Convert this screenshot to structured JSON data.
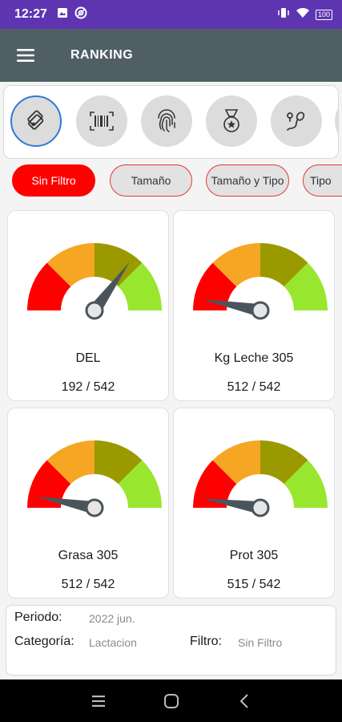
{
  "status_bar": {
    "time": "12:27",
    "battery": "100",
    "icons": [
      "image-icon",
      "at-sign-icon",
      "vibrate-icon",
      "wifi-icon",
      "battery-icon"
    ]
  },
  "app_bar": {
    "title": "RANKING",
    "menu_icon": "hamburger-menu-icon"
  },
  "category_icons": [
    {
      "name": "tags-icon",
      "selected": true
    },
    {
      "name": "barcode-icon",
      "selected": false
    },
    {
      "name": "fingerprint-icon",
      "selected": false
    },
    {
      "name": "medal-icon",
      "selected": false
    },
    {
      "name": "sperm-icon",
      "selected": false
    }
  ],
  "filters": [
    {
      "label": "Sin Filtro",
      "active": true
    },
    {
      "label": "Tamaño",
      "active": false
    },
    {
      "label": "Tamaño y Tipo",
      "active": false
    },
    {
      "label": "Tipo",
      "active": false
    }
  ],
  "gauges": [
    {
      "label": "DEL",
      "value": "192 / 542",
      "level": 0.7
    },
    {
      "label": "Kg Leche 305",
      "value": "512 / 542",
      "level": 0.06
    },
    {
      "label": "Grasa 305",
      "value": "512 / 542",
      "level": 0.06
    },
    {
      "label": "Prot 305",
      "value": "515 / 542",
      "level": 0.05
    }
  ],
  "gauge_colors": [
    "#ff0000",
    "#f5a623",
    "#9a9a00",
    "#99e62e"
  ],
  "info": {
    "periodo_label": "Periodo:",
    "periodo_value": "2022 jun.",
    "categoria_label": "Categoría:",
    "categoria_value": "Lactacion",
    "filtro_label": "Filtro:",
    "filtro_value": "Sin Filtro"
  },
  "nav_bar": {
    "icons": [
      "recents-icon",
      "home-icon",
      "back-icon"
    ]
  }
}
